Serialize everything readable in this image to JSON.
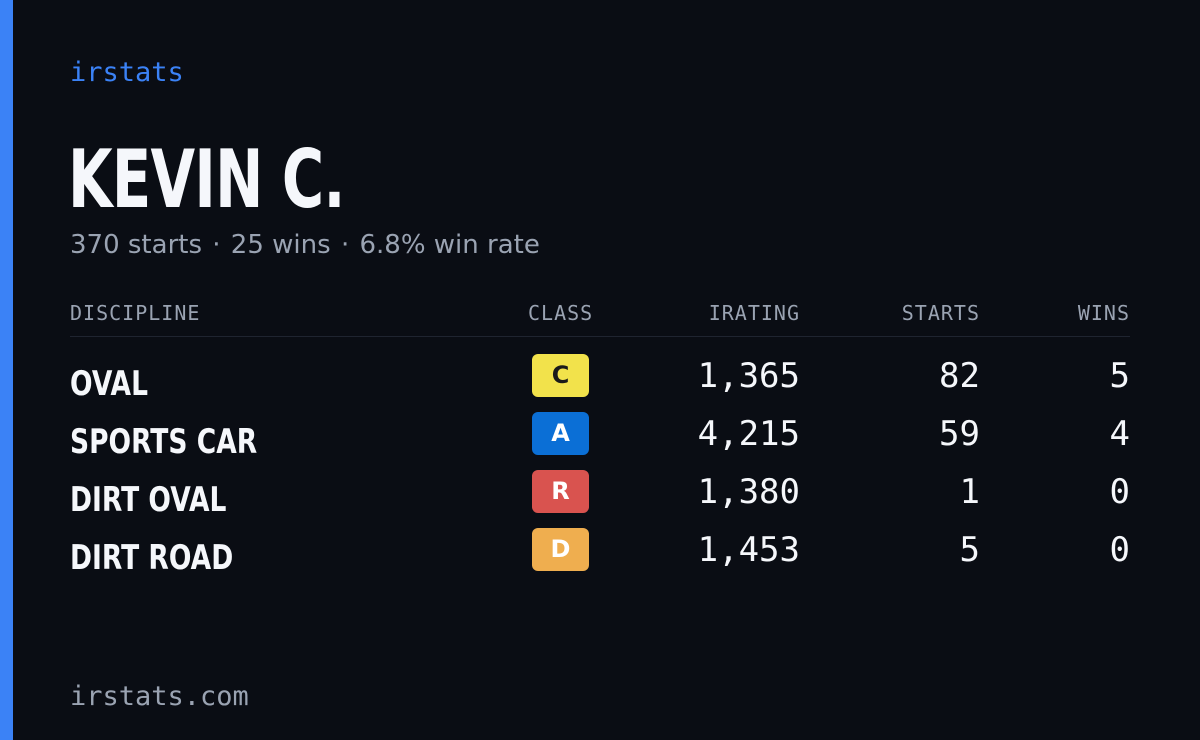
{
  "brand": "irstats",
  "driver": {
    "name": "KEVIN C."
  },
  "summary": {
    "starts": "370 starts",
    "wins": "25 wins",
    "win_rate": "6.8% win rate",
    "separator": "·"
  },
  "table": {
    "headers": {
      "discipline": "DISCIPLINE",
      "class": "CLASS",
      "irating": "IRATING",
      "starts": "STARTS",
      "wins": "WINS"
    },
    "rows": [
      {
        "discipline": "OVAL",
        "class": "C",
        "class_color": "#f2e24b",
        "class_text_color": "#1a1a1a",
        "irating": "1,365",
        "starts": "82",
        "wins": "5"
      },
      {
        "discipline": "SPORTS CAR",
        "class": "A",
        "class_color": "#0b6fd6",
        "class_text_color": "#ffffff",
        "irating": "4,215",
        "starts": "59",
        "wins": "4"
      },
      {
        "discipline": "DIRT OVAL",
        "class": "R",
        "class_color": "#d9534f",
        "class_text_color": "#ffffff",
        "irating": "1,380",
        "starts": "1",
        "wins": "0"
      },
      {
        "discipline": "DIRT ROAD",
        "class": "D",
        "class_color": "#efae4f",
        "class_text_color": "#ffffff",
        "irating": "1,453",
        "starts": "5",
        "wins": "0"
      }
    ]
  },
  "footer": "irstats.com",
  "colors": {
    "background": "#0a0d14",
    "accent": "#3b82f6",
    "muted": "#9aa3b2",
    "text": "#f5f7fb"
  }
}
